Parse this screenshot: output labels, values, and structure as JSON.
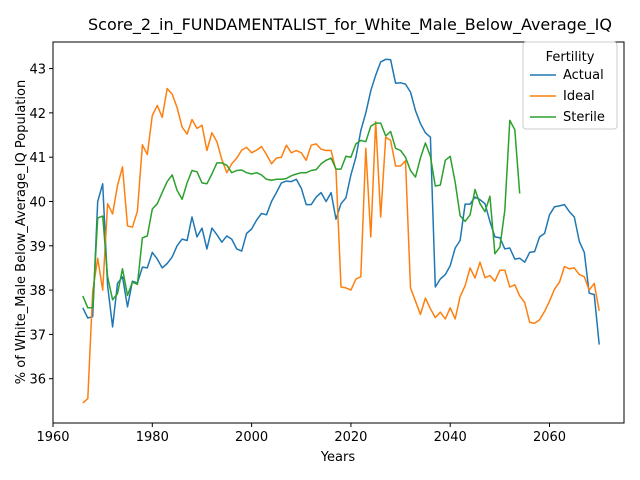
{
  "chart_data": {
    "type": "line",
    "title": "Score_2_in_FUNDAMENTALIST_for_White_Male_Below_Average_IQ",
    "xlabel": "Years",
    "ylabel": "% of White_Male Below_Average_IQ Population",
    "xlim": [
      1960,
      2075
    ],
    "ylim": [
      35.0,
      43.6
    ],
    "xticks": [
      1960,
      1980,
      2000,
      2020,
      2040,
      2060
    ],
    "yticks": [
      36,
      37,
      38,
      39,
      40,
      41,
      42,
      43
    ],
    "grid": false,
    "legend": {
      "title": "Fertility",
      "placement": "top-right"
    },
    "series": [
      {
        "name": "Actual",
        "color": "#1f77b4",
        "x": [
          1966,
          1967,
          1968,
          1969,
          1970,
          1971,
          1972,
          1973,
          1974,
          1975,
          1976,
          1977,
          1978,
          1979,
          1980,
          1981,
          1982,
          1983,
          1984,
          1985,
          1986,
          1987,
          1988,
          1989,
          1990,
          1991,
          1992,
          1993,
          1994,
          1995,
          1996,
          1997,
          1998,
          1999,
          2000,
          2001,
          2002,
          2003,
          2004,
          2005,
          2006,
          2007,
          2008,
          2009,
          2010,
          2011,
          2012,
          2013,
          2014,
          2015,
          2016,
          2017,
          2018,
          2019,
          2020,
          2021,
          2022,
          2023,
          2024,
          2025,
          2026,
          2027,
          2028,
          2029,
          2030,
          2031,
          2032,
          2033,
          2034,
          2035,
          2036,
          2037,
          2038,
          2039,
          2040,
          2041,
          2042,
          2043,
          2044,
          2045,
          2046,
          2047,
          2048,
          2049,
          2050,
          2051,
          2052,
          2053,
          2054,
          2055,
          2056,
          2057,
          2058,
          2059,
          2060,
          2061,
          2062,
          2063,
          2064,
          2065,
          2066,
          2067,
          2068,
          2069,
          2070
        ],
        "values": [
          37.6,
          37.37,
          37.4,
          40.0,
          40.4,
          38.1,
          37.17,
          38.15,
          38.3,
          37.62,
          38.2,
          38.16,
          38.52,
          38.5,
          38.85,
          38.7,
          38.5,
          38.6,
          38.75,
          39.0,
          39.15,
          39.12,
          39.65,
          39.2,
          39.4,
          38.93,
          39.4,
          39.25,
          39.08,
          39.22,
          39.15,
          38.93,
          38.88,
          39.28,
          39.38,
          39.58,
          39.73,
          39.7,
          40.0,
          40.2,
          40.42,
          40.46,
          40.45,
          40.5,
          40.3,
          39.93,
          39.93,
          40.1,
          40.2,
          40.0,
          40.2,
          39.6,
          39.95,
          40.08,
          40.6,
          41.0,
          41.6,
          42.0,
          42.5,
          42.85,
          43.15,
          43.21,
          43.2,
          42.67,
          42.68,
          42.65,
          42.47,
          42.05,
          41.76,
          41.55,
          41.45,
          38.07,
          38.25,
          38.35,
          38.55,
          38.95,
          39.12,
          39.94,
          39.94,
          40.1,
          40.04,
          39.95,
          39.55,
          39.2,
          39.18,
          38.93,
          38.95,
          38.7,
          38.72,
          38.63,
          38.85,
          38.87,
          39.2,
          39.28,
          39.7,
          39.88,
          39.9,
          39.93,
          39.77,
          39.65,
          39.1,
          38.85,
          37.93,
          37.9,
          36.77
        ]
      },
      {
        "name": "Ideal",
        "color": "#ff7f0e",
        "x": [
          1966,
          1967,
          1968,
          1969,
          1970,
          1971,
          1972,
          1973,
          1974,
          1975,
          1976,
          1977,
          1978,
          1979,
          1980,
          1981,
          1982,
          1983,
          1984,
          1985,
          1986,
          1987,
          1988,
          1989,
          1990,
          1991,
          1992,
          1993,
          1994,
          1995,
          1996,
          1997,
          1998,
          1999,
          2000,
          2001,
          2002,
          2003,
          2004,
          2005,
          2006,
          2007,
          2008,
          2009,
          2010,
          2011,
          2012,
          2013,
          2014,
          2015,
          2016,
          2017,
          2018,
          2019,
          2020,
          2021,
          2022,
          2023,
          2024,
          2025,
          2026,
          2027,
          2028,
          2029,
          2030,
          2031,
          2032,
          2033,
          2034,
          2035,
          2036,
          2037,
          2038,
          2039,
          2040,
          2041,
          2042,
          2043,
          2044,
          2045,
          2046,
          2047,
          2048,
          2049,
          2050,
          2051,
          2052,
          2053,
          2054,
          2055,
          2056,
          2057,
          2058,
          2059,
          2060,
          2061,
          2062,
          2063,
          2064,
          2065,
          2066,
          2067,
          2068,
          2069,
          2070
        ],
        "values": [
          35.45,
          35.55,
          37.97,
          38.72,
          38.0,
          39.95,
          39.72,
          40.36,
          40.78,
          39.45,
          39.42,
          39.78,
          41.28,
          41.06,
          41.94,
          42.17,
          41.9,
          42.55,
          42.42,
          42.12,
          41.68,
          41.52,
          41.85,
          41.65,
          41.72,
          41.15,
          41.55,
          41.35,
          40.95,
          40.65,
          40.85,
          40.98,
          41.16,
          41.22,
          41.1,
          41.16,
          41.24,
          41.06,
          40.85,
          40.98,
          41.0,
          41.27,
          41.1,
          41.15,
          41.1,
          40.93,
          41.27,
          41.3,
          41.18,
          41.15,
          41.15,
          40.7,
          38.07,
          38.05,
          38.0,
          38.25,
          38.3,
          41.2,
          39.2,
          41.8,
          39.65,
          41.45,
          41.38,
          40.8,
          40.8,
          40.92,
          38.05,
          37.75,
          37.45,
          37.82,
          37.58,
          37.38,
          37.5,
          37.35,
          37.6,
          37.35,
          37.85,
          38.1,
          38.5,
          38.27,
          38.63,
          38.28,
          38.33,
          38.2,
          38.45,
          38.45,
          38.07,
          38.12,
          37.87,
          37.72,
          37.27,
          37.25,
          37.33,
          37.52,
          37.75,
          38.02,
          38.18,
          38.53,
          38.48,
          38.5,
          38.35,
          38.3,
          38.0,
          38.15,
          37.53
        ]
      },
      {
        "name": "Sterile",
        "color": "#2ca02c",
        "x": [
          1966,
          1967,
          1968,
          1969,
          1970,
          1971,
          1972,
          1973,
          1974,
          1975,
          1976,
          1977,
          1978,
          1979,
          1980,
          1981,
          1982,
          1983,
          1984,
          1985,
          1986,
          1987,
          1988,
          1989,
          1990,
          1991,
          1992,
          1993,
          1994,
          1995,
          1996,
          1997,
          1998,
          1999,
          2000,
          2001,
          2002,
          2003,
          2004,
          2005,
          2006,
          2007,
          2008,
          2009,
          2010,
          2011,
          2012,
          2013,
          2014,
          2015,
          2016,
          2017,
          2018,
          2019,
          2020,
          2021,
          2022,
          2023,
          2024,
          2025,
          2026,
          2027,
          2028,
          2029,
          2030,
          2031,
          2032,
          2033,
          2034,
          2035,
          2036,
          2037,
          2038,
          2039,
          2040,
          2041,
          2042,
          2043,
          2044,
          2045,
          2046,
          2047,
          2048,
          2049,
          2050,
          2051,
          2052,
          2053,
          2054
        ],
        "values": [
          37.87,
          37.6,
          37.6,
          39.63,
          39.67,
          38.3,
          37.78,
          37.92,
          38.48,
          37.88,
          38.18,
          38.13,
          39.18,
          39.22,
          39.83,
          39.95,
          40.2,
          40.45,
          40.6,
          40.25,
          40.05,
          40.42,
          40.7,
          40.67,
          40.42,
          40.4,
          40.62,
          40.87,
          40.87,
          40.82,
          40.65,
          40.7,
          40.71,
          40.65,
          40.62,
          40.65,
          40.6,
          40.5,
          40.48,
          40.5,
          40.5,
          40.52,
          40.58,
          40.62,
          40.65,
          40.65,
          40.7,
          40.72,
          40.85,
          40.93,
          40.98,
          40.73,
          40.73,
          41.02,
          41.0,
          41.3,
          41.38,
          41.35,
          41.7,
          41.77,
          41.77,
          41.48,
          41.58,
          41.2,
          41.15,
          41.0,
          40.7,
          40.55,
          40.98,
          41.32,
          41.02,
          40.35,
          40.37,
          40.93,
          41.02,
          40.43,
          39.68,
          39.55,
          39.7,
          40.27,
          39.95,
          39.77,
          40.12,
          38.82,
          38.97,
          39.8,
          41.83,
          41.62,
          40.18
        ]
      }
    ]
  }
}
